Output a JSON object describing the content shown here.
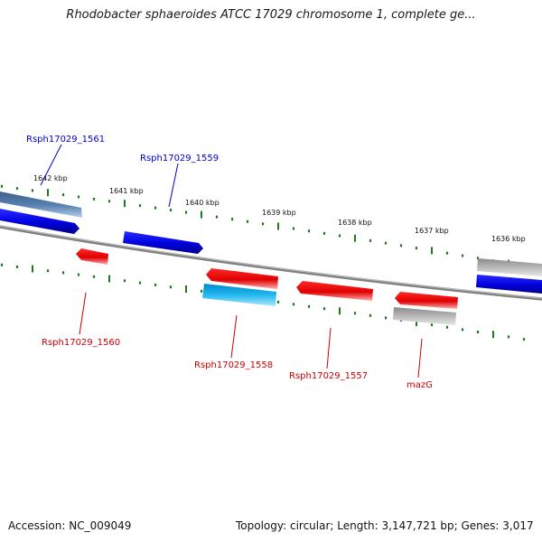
{
  "title": "Rhodobacter sphaeroides ATCC 17029 chromosome 1, complete ge...",
  "footer": {
    "accession": "Accession: NC_009049",
    "topology": "Topology: circular; Length: 3,147,721 bp; Genes: 3,017"
  },
  "scale_ticks": [
    "1642 kbp",
    "1641 kbp",
    "1640 kbp",
    "1639 kbp",
    "1638 kbp",
    "1637 kbp",
    "1636 kbp"
  ],
  "genes": [
    {
      "id": "Rsph17029_1561",
      "color": "#0000cc",
      "strand": "+"
    },
    {
      "id": "Rsph17029_1559",
      "color": "#0000cc",
      "strand": "+"
    },
    {
      "id": "Rsph17029_1560",
      "color": "#cc0000",
      "strand": "-"
    },
    {
      "id": "Rsph17029_1558",
      "color": "#cc0000",
      "strand": "-"
    },
    {
      "id": "Rsph17029_1557",
      "color": "#cc0000",
      "strand": "-"
    },
    {
      "id": "mazG",
      "color": "#cc0000",
      "strand": "-"
    }
  ],
  "colors": {
    "forward": "#0000ee",
    "reverse": "#ee0000",
    "backbone": "#777777",
    "tick": "#1e7a1e",
    "rna": "#5a84b4",
    "light_blue": "#22b8ee",
    "gray": "#b0b0b0"
  }
}
